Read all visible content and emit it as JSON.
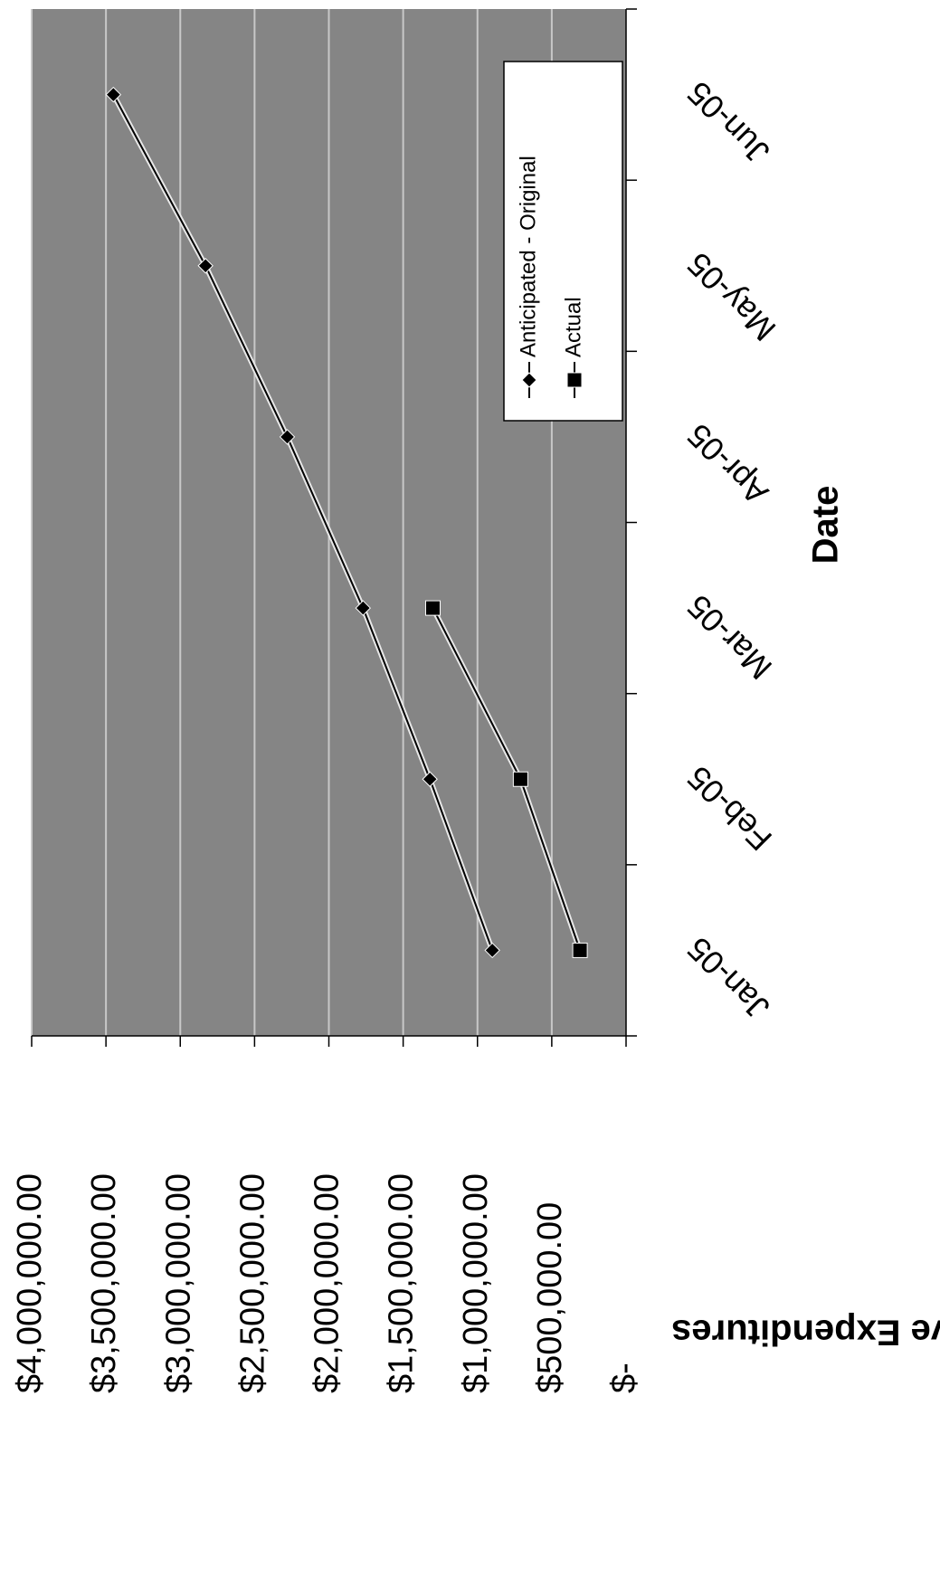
{
  "chart_data": {
    "type": "line",
    "x_label": "Date",
    "y_label": "Cummulative Expenditures",
    "categories": [
      "Jan-05",
      "Feb-05",
      "Mar-05",
      "Apr-05",
      "May-05",
      "Jun-05"
    ],
    "series": [
      {
        "name": "Anticipated - Original",
        "color": "#000000",
        "marker": "diamond",
        "values": [
          900000,
          1320000,
          1770000,
          2280000,
          2830000,
          3450000
        ]
      },
      {
        "name": "Actual",
        "color": "#000000",
        "marker": "square",
        "values": [
          310000,
          710000,
          1300000,
          null,
          null,
          null
        ]
      }
    ],
    "ylim": [
      0,
      4000000
    ],
    "yticks": [
      {
        "value": 0,
        "label": "$-"
      },
      {
        "value": 500000,
        "label": "$500,000.00"
      },
      {
        "value": 1000000,
        "label": "$1,000,000.00"
      },
      {
        "value": 1500000,
        "label": "$1,500,000.00"
      },
      {
        "value": 2000000,
        "label": "$2,000,000.00"
      },
      {
        "value": 2500000,
        "label": "$2,500,000.00"
      },
      {
        "value": 3000000,
        "label": "$3,000,000.00"
      },
      {
        "value": 3500000,
        "label": "$3,500,000.00"
      },
      {
        "value": 4000000,
        "label": "$4,000,000.00"
      }
    ],
    "grid": true,
    "legend": "upper right",
    "rotation": -90
  }
}
